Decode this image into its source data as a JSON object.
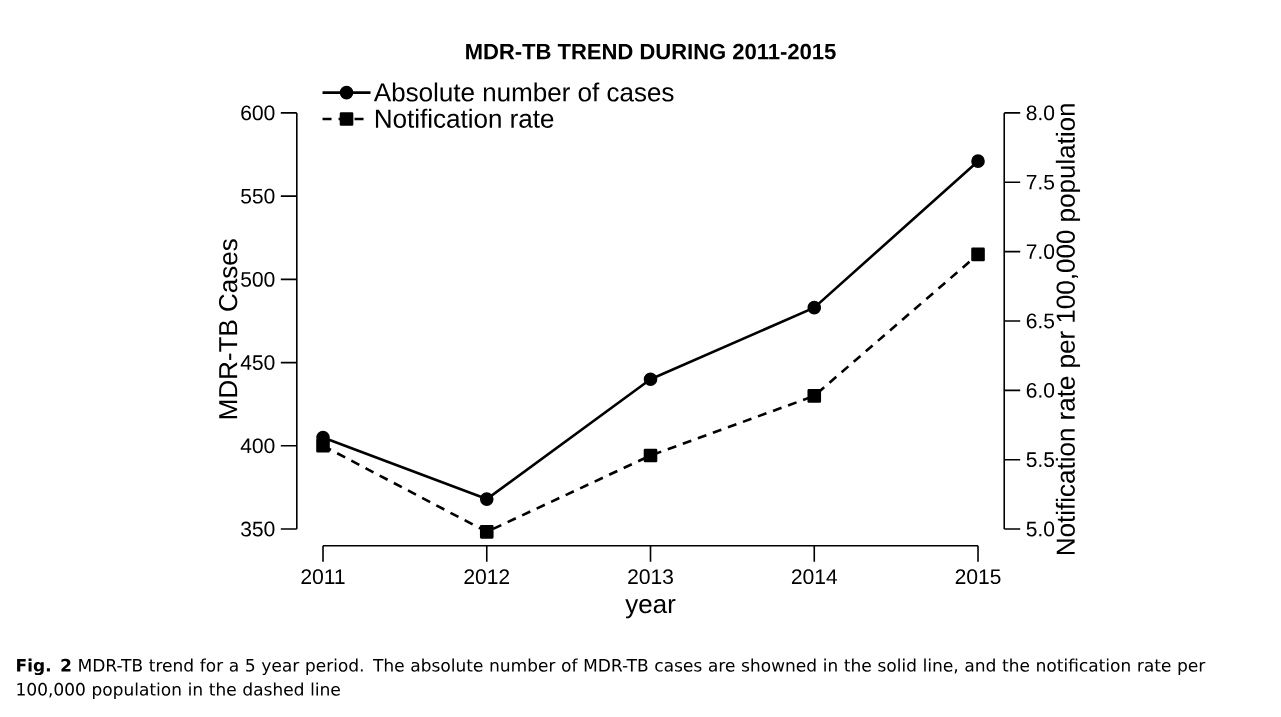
{
  "chart_data": {
    "type": "line",
    "title": "MDR-TB TREND DURING 2011-2015",
    "xlabel": "year",
    "ylabel": "MDR-TB Cases",
    "y2label": "Notification rate per 100,000 population",
    "x": [
      2011,
      2012,
      2013,
      2014,
      2015
    ],
    "series": [
      {
        "name": "Absolute number of cases",
        "color": "#000000",
        "values": [
          405,
          368,
          440,
          483,
          571
        ],
        "marker": "circle",
        "line_style": "solid"
      },
      {
        "name": "Notification rate",
        "color": "#000000",
        "values": [
          5.6,
          4.98,
          5.53,
          5.96,
          6.98
        ],
        "marker": "square",
        "line_style": "dashed",
        "axis": "y2"
      }
    ],
    "xlim": [
      2010.84,
      2015.16
    ],
    "xticks": [
      2011,
      2012,
      2013,
      2014,
      2015
    ],
    "ylim": [
      340,
      600
    ],
    "yticks": [
      350,
      400,
      450,
      500,
      550,
      600
    ],
    "y2lim": [
      4.88,
      8
    ],
    "y2ticks": [
      {
        "value": 5,
        "label": "5.0"
      },
      {
        "value": 5.5,
        "label": "5.5"
      },
      {
        "value": 6,
        "label": "6.0"
      },
      {
        "value": 6.5,
        "label": "6.5"
      },
      {
        "value": 7,
        "label": "7.0"
      },
      {
        "value": 7.5,
        "label": "7.5"
      },
      {
        "value": 8,
        "label": "8.0"
      }
    ],
    "legend": "top left",
    "grid": false,
    "annotations": [
      "**Fig. 2** MDR-TB trend for a 5 year period. The absolute number of MDR-TB cases are showned in the solid line, and the notification rate per 100,000 population in the dashed line"
    ]
  }
}
